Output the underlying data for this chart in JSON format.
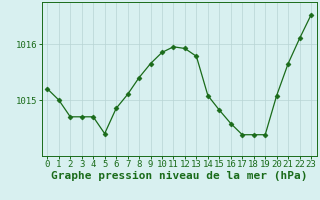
{
  "hours": [
    0,
    1,
    2,
    3,
    4,
    5,
    6,
    7,
    8,
    9,
    10,
    11,
    12,
    13,
    14,
    15,
    16,
    17,
    18,
    19,
    20,
    21,
    22,
    23
  ],
  "pressure": [
    1015.2,
    1015.0,
    1014.7,
    1014.7,
    1014.7,
    1014.4,
    1014.85,
    1015.1,
    1015.4,
    1015.65,
    1015.85,
    1015.95,
    1015.92,
    1015.78,
    1015.08,
    1014.82,
    1014.58,
    1014.38,
    1014.38,
    1014.38,
    1015.08,
    1015.65,
    1016.1,
    1016.52
  ],
  "line_color": "#1a6b1a",
  "marker": "D",
  "marker_size": 2.5,
  "bg_color": "#d8f0f0",
  "grid_color": "#b8d4d4",
  "axis_color": "#1a6b1a",
  "xlabel": "Graphe pression niveau de la mer (hPa)",
  "xlabel_fontsize": 8,
  "tick_fontsize": 6.5,
  "ylim": [
    1014.0,
    1016.75
  ],
  "yticks": [
    1015.0,
    1016.0
  ],
  "xlim": [
    -0.5,
    23.5
  ]
}
